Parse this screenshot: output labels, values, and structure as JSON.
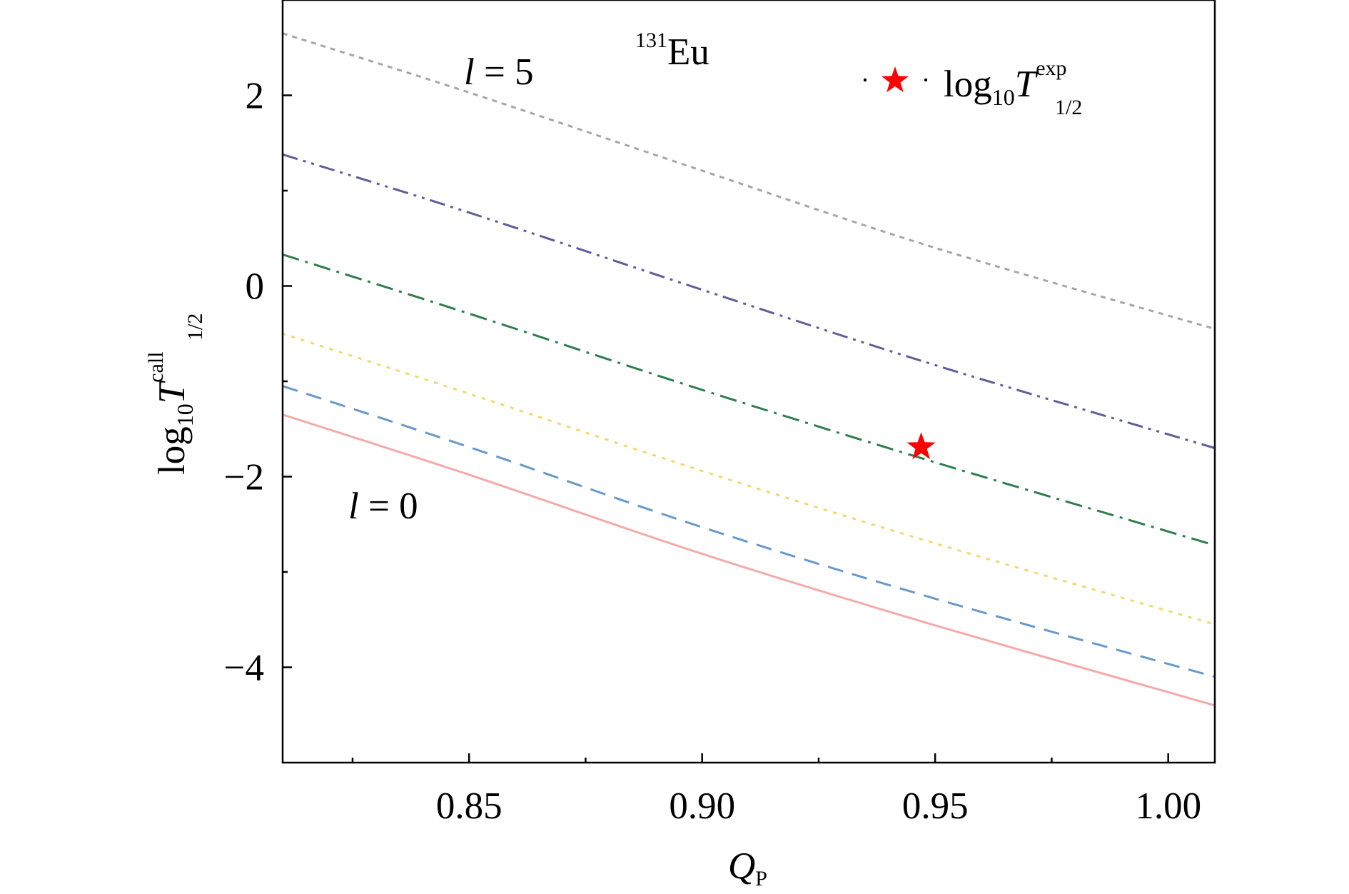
{
  "chart_data": {
    "type": "line",
    "title": "131Eu",
    "title_mass": "131",
    "title_element": "Eu",
    "xlabel": "Q",
    "xlabel_sub": "P",
    "ylabel_prefix": "log",
    "ylabel_base": "10",
    "ylabel_T": "T",
    "ylabel_sup": "call",
    "ylabel_sub": "1/2",
    "xlim": [
      0.81,
      1.01
    ],
    "ylim": [
      -5.0,
      3.0
    ],
    "xticks": [
      0.85,
      0.9,
      0.95,
      1.0
    ],
    "xtick_labels": [
      "0.85",
      "0.90",
      "0.95",
      "1.00"
    ],
    "xminor": [
      0.825,
      0.875,
      0.925,
      0.975
    ],
    "yticks": [
      2,
      0,
      -2,
      -4
    ],
    "ytick_labels": [
      "2",
      "0",
      "−2",
      "−4"
    ],
    "yminor": [
      1,
      -1,
      -3
    ],
    "grid": false,
    "legend_position": "top-right",
    "legend": {
      "prefix": "log",
      "base": "10",
      "T": "T",
      "sup": "exp",
      "sub": "1/2"
    },
    "annotations": {
      "l5_var": "l",
      "l5_eq": " = 5",
      "l0_var": "l",
      "l0_eq": " = 0"
    },
    "x": [
      0.81,
      0.85,
      0.9,
      0.95,
      1.01
    ],
    "series": [
      {
        "values": [
          -1.35,
          -1.98,
          -2.81,
          -3.56,
          -4.4
        ],
        "color": "#f4aaa8",
        "style": "solid"
      },
      {
        "values": [
          -1.05,
          -1.69,
          -2.53,
          -3.28,
          -4.1
        ],
        "color": "#6699cc",
        "style": "dashed"
      },
      {
        "values": [
          -0.5,
          -1.13,
          -1.94,
          -2.7,
          -3.55
        ],
        "color": "#f5d76e",
        "style": "dotted"
      },
      {
        "values": [
          0.33,
          -0.29,
          -1.09,
          -1.85,
          -2.72
        ],
        "color": "#2e7d4f",
        "style": "dashdot"
      },
      {
        "values": [
          1.38,
          0.77,
          -0.04,
          -0.83,
          -1.7
        ],
        "color": "#5e5e99",
        "style": "dashdotdot"
      },
      {
        "values": [
          2.65,
          2.03,
          1.21,
          0.4,
          -0.45
        ],
        "color": "#a6a6a6",
        "style": "shortdash"
      }
    ],
    "experimental_point": {
      "x": 0.947,
      "y": -1.69,
      "color": "#ff0000",
      "marker": "star"
    }
  }
}
